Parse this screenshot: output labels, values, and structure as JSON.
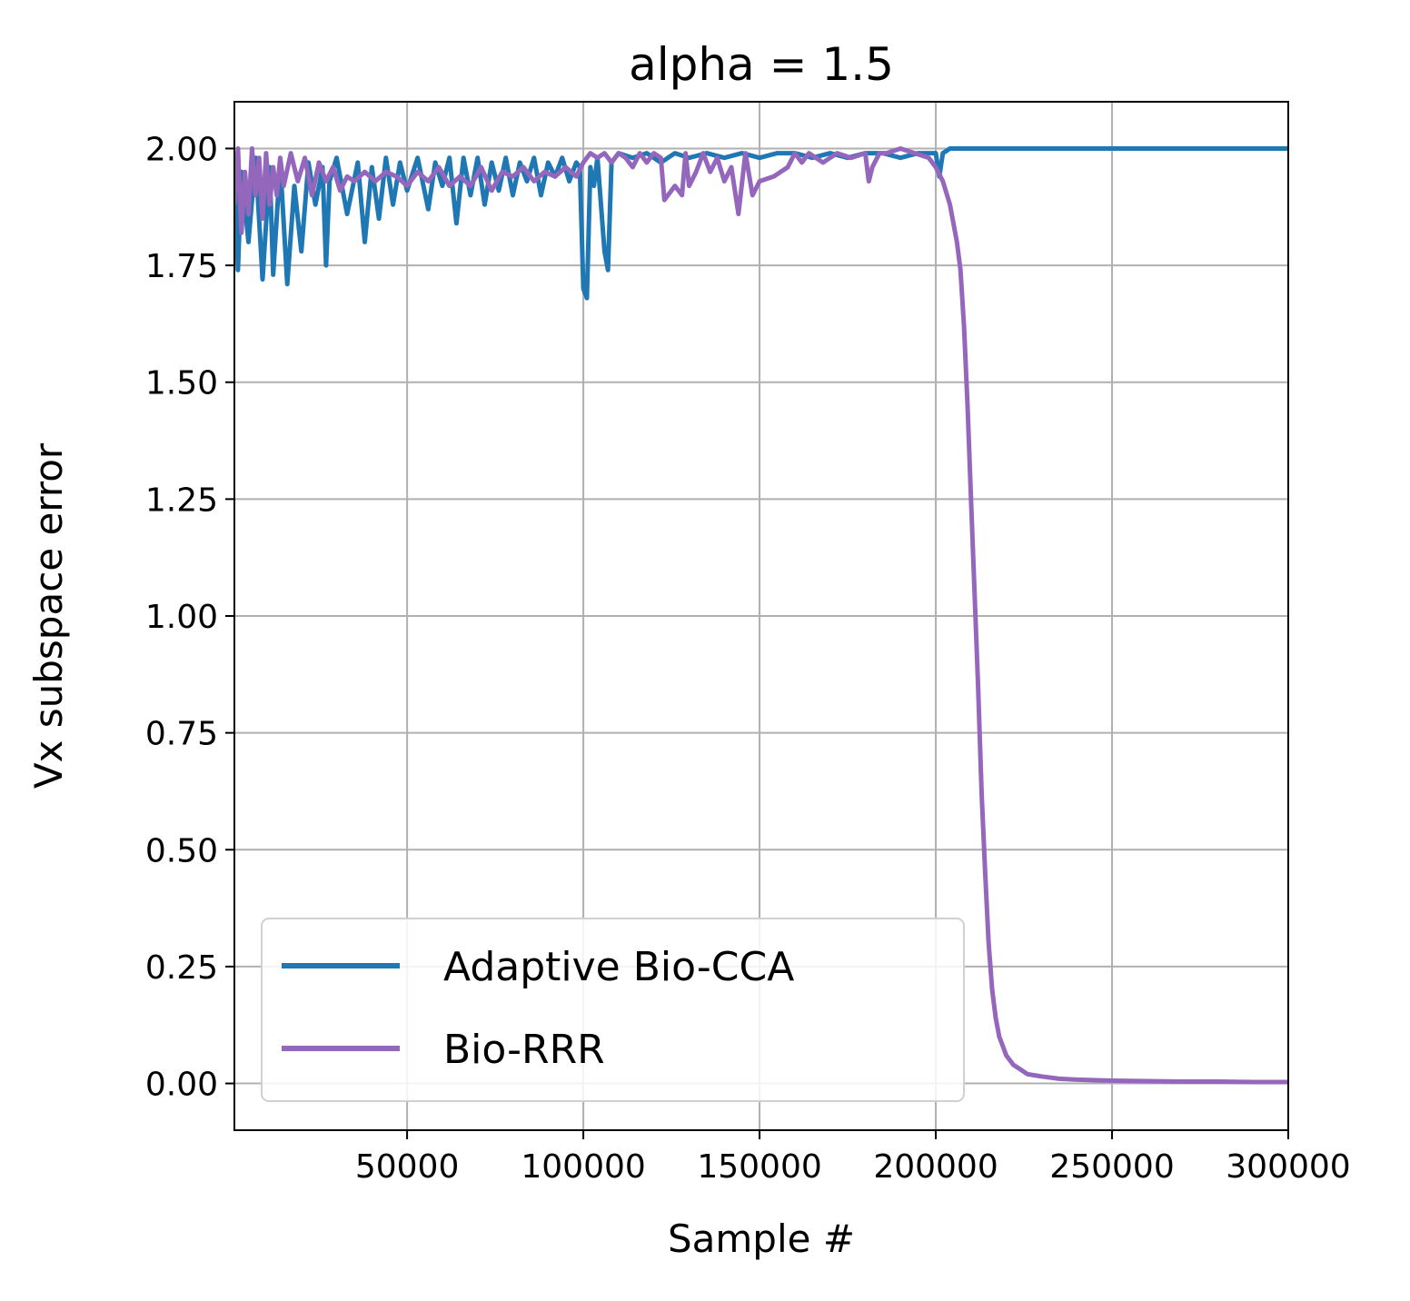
{
  "chart_data": {
    "type": "line",
    "title": "alpha = 1.5",
    "xlabel": "Sample #",
    "ylabel": "Vx subspace error",
    "xlim": [
      1000,
      300000
    ],
    "ylim": [
      -0.1,
      2.1
    ],
    "xticks": [
      50000,
      100000,
      150000,
      200000,
      250000,
      300000
    ],
    "xtick_labels": [
      "50000",
      "100000",
      "150000",
      "200000",
      "250000",
      "300000"
    ],
    "yticks": [
      0.0,
      0.25,
      0.5,
      0.75,
      1.0,
      1.25,
      1.5,
      1.75,
      2.0
    ],
    "ytick_labels": [
      "0.00",
      "0.25",
      "0.50",
      "0.75",
      "1.00",
      "1.25",
      "1.50",
      "1.75",
      "2.00"
    ],
    "grid": true,
    "legend_position": "lower-left",
    "series": [
      {
        "name": "Adaptive Bio-CCA",
        "color": "#1f77b4",
        "x": [
          1000,
          2000,
          3000,
          5000,
          7000,
          9000,
          11000,
          12000,
          14000,
          16000,
          18000,
          20000,
          22000,
          24000,
          26000,
          27000,
          28000,
          30000,
          33000,
          36000,
          38000,
          40000,
          42000,
          44000,
          46000,
          48000,
          50000,
          53000,
          56000,
          58000,
          60000,
          62000,
          64000,
          66000,
          68000,
          70000,
          72000,
          74000,
          76000,
          78000,
          80000,
          82000,
          84000,
          86000,
          88000,
          90000,
          92000,
          94000,
          96000,
          98000,
          99000,
          100000,
          101000,
          102000,
          103000,
          104000,
          106000,
          107000,
          108000,
          110000,
          114000,
          118000,
          122000,
          126000,
          130000,
          135000,
          140000,
          145000,
          150000,
          155000,
          160000,
          165000,
          170000,
          175000,
          180000,
          185000,
          190000,
          195000,
          200000,
          201000,
          202000,
          204000,
          210000,
          230000,
          250000,
          270000,
          300000
        ],
        "y": [
          1.98,
          1.74,
          1.95,
          1.8,
          1.98,
          1.72,
          1.96,
          1.73,
          1.97,
          1.71,
          1.92,
          1.78,
          1.97,
          1.88,
          1.96,
          1.75,
          1.93,
          1.98,
          1.86,
          1.97,
          1.8,
          1.96,
          1.85,
          1.98,
          1.88,
          1.97,
          1.91,
          1.98,
          1.87,
          1.97,
          1.92,
          1.98,
          1.84,
          1.98,
          1.9,
          1.98,
          1.88,
          1.97,
          1.91,
          1.98,
          1.9,
          1.97,
          1.93,
          1.98,
          1.9,
          1.97,
          1.94,
          1.98,
          1.93,
          1.97,
          1.96,
          1.7,
          1.68,
          1.96,
          1.92,
          1.98,
          1.78,
          1.74,
          1.97,
          1.99,
          1.98,
          1.99,
          1.97,
          1.99,
          1.98,
          1.99,
          1.98,
          1.99,
          1.98,
          1.99,
          1.99,
          1.98,
          1.99,
          1.98,
          1.99,
          1.99,
          1.98,
          1.99,
          1.99,
          1.94,
          1.99,
          2.0,
          2.0,
          2.0,
          2.0,
          2.0,
          2.0
        ]
      },
      {
        "name": "Bio-RRR",
        "color": "#9467bd",
        "x": [
          1000,
          2000,
          3000,
          4000,
          5000,
          6000,
          7000,
          8000,
          9000,
          10000,
          11000,
          12000,
          13000,
          14000,
          15000,
          17000,
          19000,
          21000,
          23000,
          25000,
          27000,
          29000,
          31000,
          33000,
          35000,
          38000,
          41000,
          44000,
          47000,
          50000,
          53000,
          56000,
          59000,
          62000,
          65000,
          68000,
          71000,
          74000,
          77000,
          80000,
          83000,
          86000,
          89000,
          92000,
          95000,
          98000,
          100000,
          102000,
          104000,
          106000,
          108000,
          110000,
          112000,
          114000,
          116000,
          118000,
          120000,
          122000,
          123000,
          124000,
          126000,
          128000,
          129000,
          130000,
          132000,
          134000,
          136000,
          138000,
          140000,
          142000,
          144000,
          146000,
          148000,
          150000,
          154000,
          158000,
          160000,
          162000,
          164000,
          168000,
          172000,
          176000,
          180000,
          181000,
          182000,
          184000,
          186000,
          190000,
          194000,
          198000,
          200000,
          202000,
          204000,
          206000,
          207000,
          208000,
          209000,
          210000,
          211000,
          212000,
          213000,
          214000,
          215000,
          216000,
          217000,
          218000,
          219000,
          220000,
          222000,
          224000,
          226000,
          230000,
          235000,
          240000,
          250000,
          260000,
          270000,
          280000,
          290000,
          300000
        ],
        "y": [
          1.88,
          2.0,
          1.82,
          1.95,
          1.86,
          2.0,
          1.9,
          1.98,
          1.85,
          1.99,
          1.88,
          1.96,
          1.9,
          1.98,
          1.92,
          1.99,
          1.93,
          1.98,
          1.9,
          1.97,
          1.93,
          1.96,
          1.91,
          1.94,
          1.93,
          1.95,
          1.93,
          1.95,
          1.94,
          1.92,
          1.95,
          1.93,
          1.96,
          1.92,
          1.94,
          1.92,
          1.96,
          1.91,
          1.95,
          1.94,
          1.96,
          1.93,
          1.95,
          1.94,
          1.96,
          1.94,
          1.97,
          1.99,
          1.98,
          1.99,
          1.97,
          1.99,
          1.98,
          1.96,
          1.99,
          1.97,
          1.99,
          1.98,
          1.89,
          1.9,
          1.92,
          1.9,
          1.99,
          1.92,
          1.95,
          1.99,
          1.95,
          1.98,
          1.93,
          1.96,
          1.86,
          1.99,
          1.9,
          1.93,
          1.94,
          1.96,
          1.99,
          1.97,
          1.99,
          1.97,
          1.99,
          1.98,
          1.99,
          1.93,
          1.96,
          1.99,
          1.99,
          2.0,
          1.99,
          1.98,
          1.96,
          1.93,
          1.88,
          1.8,
          1.74,
          1.62,
          1.45,
          1.25,
          1.05,
          0.85,
          0.62,
          0.45,
          0.3,
          0.2,
          0.14,
          0.1,
          0.08,
          0.06,
          0.04,
          0.03,
          0.02,
          0.015,
          0.01,
          0.008,
          0.006,
          0.005,
          0.004,
          0.004,
          0.003,
          0.003
        ]
      }
    ]
  }
}
